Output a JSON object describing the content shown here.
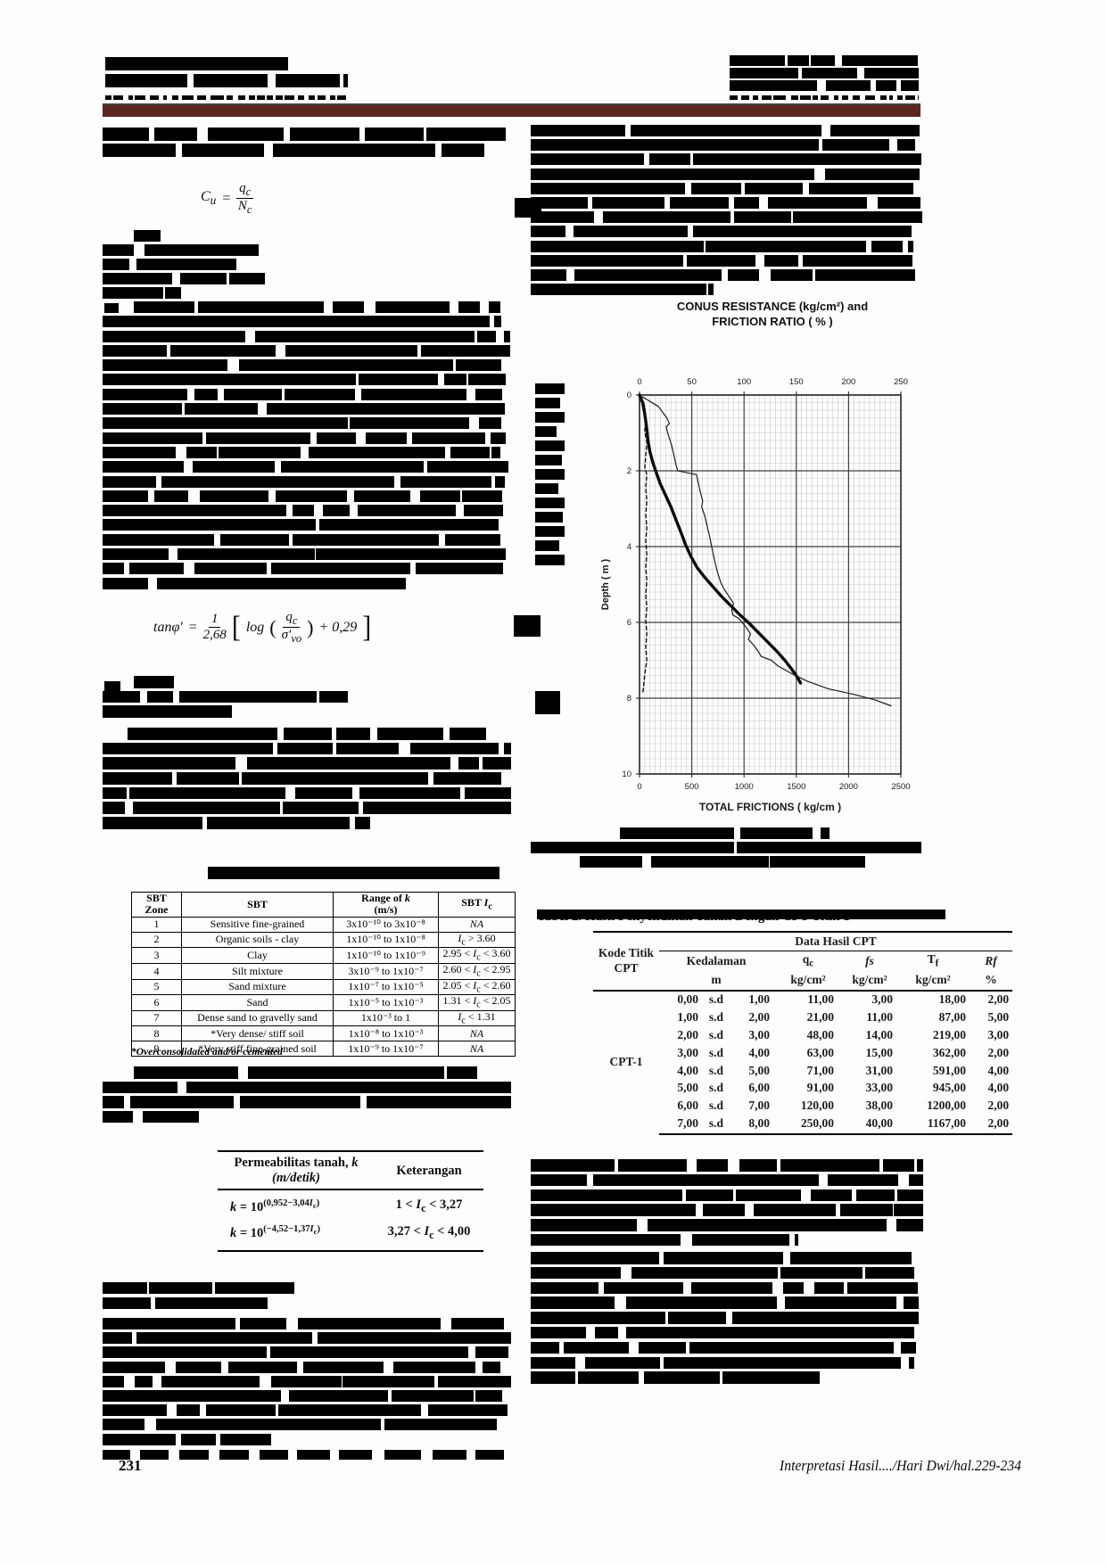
{
  "colors": {
    "header_bar": "#5a2620"
  },
  "page": {
    "number": "231",
    "footer_citation": "Interpretasi Hasil..../Hari Dwi/hal.229-234"
  },
  "formulas": {
    "eq1": {
      "lhs": "C",
      "lhs_sub": "u",
      "eq": "=",
      "num": "q",
      "num_sub": "c",
      "den": "N",
      "den_sub": "c"
    },
    "eq2": {
      "lhs": "tanφ′",
      "eq": "=",
      "f1_num": "1",
      "f1_den": "2,68",
      "lbracket": "[",
      "log": "log",
      "lparen": "(",
      "f2_num": "q",
      "f2_num_sub": "c",
      "f2_den": "σ′",
      "f2_den_sub": "vo",
      "rparen": ")",
      "plus": "+ 0,29",
      "rbracket": "]"
    }
  },
  "sbt_table": {
    "headers": [
      "SBT\nZone",
      "SBT",
      "Range of k\n(m/s)",
      "SBT Ic"
    ],
    "rows": [
      [
        "1",
        "Sensitive fine-grained",
        "3x10⁻¹⁰ to 3x10⁻⁸",
        "NA"
      ],
      [
        "2",
        "Organic soils - clay",
        "1x10⁻¹⁰ to 1x10⁻⁸",
        "Ic > 3.60"
      ],
      [
        "3",
        "Clay",
        "1x10⁻¹⁰ to 1x10⁻⁹",
        "2.95 < Ic < 3.60"
      ],
      [
        "4",
        "Silt mixture",
        "3x10⁻⁹ to 1x10⁻⁷",
        "2.60 < Ic < 2.95"
      ],
      [
        "5",
        "Sand mixture",
        "1x10⁻⁷ to 1x10⁻⁵",
        "2.05 < Ic < 2.60"
      ],
      [
        "6",
        "Sand",
        "1x10⁻⁵ to 1x10⁻³",
        "1.31 < Ic < 2.05"
      ],
      [
        "7",
        "Dense sand to gravelly sand",
        "1x10⁻³ to 1",
        "Ic < 1.31"
      ],
      [
        "8",
        "*Very dense/ stiff soil",
        "1x10⁻⁸ to 1x10⁻³",
        "NA"
      ],
      [
        "9",
        "*Very stiff fine-grained soil",
        "1x10⁻⁹ to 1x10⁻⁷",
        "NA"
      ]
    ],
    "footnote": "*Overconsolidated and/or cemented"
  },
  "perm_table": {
    "header_col1_line1": "Permeabilitas tanah, k",
    "header_col1_line2": "(m/detik)",
    "header_col2": "Keterangan",
    "rows": [
      {
        "base": "k = 10",
        "exp": "(0,952−3,04Ic)",
        "note": "1 < Ic < 3,27"
      },
      {
        "base": "k = 10",
        "exp": "(−4,52−1,37Ic)",
        "note": "3,27 < Ic < 4,00"
      }
    ]
  },
  "cpt_table": {
    "caption": "Tabel 2. Hasil Penyelidikan Tanah Dengan CPT Titik 1",
    "col_kode": "Kode Titik CPT",
    "group_header": "Data Hasil CPT",
    "kedalaman_label": "Kedalaman",
    "kedalaman_unit": "m",
    "col_qc_main": "q",
    "col_qc_sub": "c",
    "col_fs": "fs",
    "col_tf_main": "T",
    "col_tf_sub": "f",
    "col_rf": "Rf",
    "unit_kg": "kg/cm²",
    "unit_pct": "%",
    "kode_value": "CPT-1",
    "rows": [
      [
        "0,00",
        "s.d",
        "1,00",
        "11,00",
        "3,00",
        "18,00",
        "2,00"
      ],
      [
        "1,00",
        "s.d",
        "2,00",
        "21,00",
        "11,00",
        "87,00",
        "5,00"
      ],
      [
        "2,00",
        "s.d",
        "3,00",
        "48,00",
        "14,00",
        "219,00",
        "3,00"
      ],
      [
        "3,00",
        "s.d",
        "4,00",
        "63,00",
        "15,00",
        "362,00",
        "2,00"
      ],
      [
        "4,00",
        "s.d",
        "5,00",
        "71,00",
        "31,00",
        "591,00",
        "4,00"
      ],
      [
        "5,00",
        "s.d",
        "6,00",
        "91,00",
        "33,00",
        "945,00",
        "4,00"
      ],
      [
        "6,00",
        "s.d",
        "7,00",
        "120,00",
        "38,00",
        "1200,00",
        "2,00"
      ],
      [
        "7,00",
        "s.d",
        "8,00",
        "250,00",
        "40,00",
        "1167,00",
        "2,00"
      ]
    ]
  },
  "chart_data": {
    "type": "line",
    "title_line1": "CONUS RESISTANCE (kg/cm²) and",
    "title_line2": "FRICTION RATIO ( % )",
    "ylabel": "Depth ( m )",
    "xlabel_bottom": "TOTAL FRICTIONS ( kg/cm )",
    "top_axis_ticks": [
      0,
      50,
      100,
      150,
      200,
      250
    ],
    "top_axis_range": [
      0,
      250
    ],
    "bottom_axis_ticks": [
      0,
      500,
      1000,
      1500,
      2000,
      2500
    ],
    "bottom_axis_range": [
      0,
      2500
    ],
    "depth_ticks": [
      0,
      2,
      4,
      6,
      8,
      10
    ],
    "depth_range": [
      0,
      10
    ],
    "legend_position": "none",
    "grid": "on",
    "series": [
      {
        "name": "conus-resistance-qc",
        "axis": "top",
        "style": "thick-solid",
        "points": [
          [
            0,
            0
          ],
          [
            3,
            0.2
          ],
          [
            5,
            0.5
          ],
          [
            7,
            0.9
          ],
          [
            8,
            1.2
          ],
          [
            10,
            1.5
          ],
          [
            13,
            1.8
          ],
          [
            16,
            2.05
          ],
          [
            20,
            2.35
          ],
          [
            25,
            2.65
          ],
          [
            30,
            2.95
          ],
          [
            35,
            3.3
          ],
          [
            40,
            3.65
          ],
          [
            44,
            3.95
          ],
          [
            49,
            4.25
          ],
          [
            55,
            4.55
          ],
          [
            62,
            4.8
          ],
          [
            70,
            5.05
          ],
          [
            78,
            5.3
          ],
          [
            87,
            5.55
          ],
          [
            96,
            5.8
          ],
          [
            104,
            6.0
          ],
          [
            113,
            6.25
          ],
          [
            122,
            6.5
          ],
          [
            131,
            6.75
          ],
          [
            139,
            7.0
          ],
          [
            146,
            7.25
          ],
          [
            151,
            7.45
          ],
          [
            154,
            7.6
          ]
        ]
      },
      {
        "name": "total-frictions",
        "axis": "bottom",
        "style": "thin-solid",
        "points": [
          [
            30,
            0.05
          ],
          [
            180,
            0.3
          ],
          [
            260,
            0.6
          ],
          [
            285,
            0.75
          ],
          [
            255,
            0.85
          ],
          [
            275,
            1.05
          ],
          [
            305,
            1.3
          ],
          [
            330,
            1.6
          ],
          [
            350,
            1.85
          ],
          [
            365,
            2.0
          ],
          [
            545,
            2.1
          ],
          [
            565,
            2.35
          ],
          [
            585,
            2.6
          ],
          [
            605,
            2.8
          ],
          [
            595,
            2.95
          ],
          [
            625,
            3.2
          ],
          [
            650,
            3.5
          ],
          [
            672,
            3.75
          ],
          [
            690,
            4.0
          ],
          [
            705,
            4.2
          ],
          [
            725,
            4.45
          ],
          [
            748,
            4.7
          ],
          [
            778,
            4.95
          ],
          [
            805,
            5.1
          ],
          [
            852,
            5.3
          ],
          [
            900,
            5.5
          ],
          [
            882,
            5.65
          ],
          [
            892,
            5.8
          ],
          [
            952,
            5.9
          ],
          [
            1012,
            6.1
          ],
          [
            1062,
            6.3
          ],
          [
            1042,
            6.45
          ],
          [
            1092,
            6.6
          ],
          [
            1132,
            6.75
          ],
          [
            1165,
            6.9
          ],
          [
            1262,
            7.0
          ],
          [
            1325,
            7.15
          ],
          [
            1455,
            7.35
          ],
          [
            1605,
            7.55
          ],
          [
            1805,
            7.75
          ],
          [
            2055,
            7.9
          ],
          [
            2255,
            8.05
          ],
          [
            2405,
            8.2
          ]
        ]
      },
      {
        "name": "friction-ratio",
        "axis": "top",
        "style": "dashed",
        "points": [
          [
            2,
            0.05
          ],
          [
            5,
            0.3
          ],
          [
            6,
            0.6
          ],
          [
            5,
            0.95
          ],
          [
            7,
            1.25
          ],
          [
            6,
            1.6
          ],
          [
            5,
            1.9
          ],
          [
            7,
            2.1
          ],
          [
            6,
            2.45
          ],
          [
            7,
            2.8
          ],
          [
            6,
            3.15
          ],
          [
            7,
            3.5
          ],
          [
            6,
            3.85
          ],
          [
            7,
            4.2
          ],
          [
            6,
            4.55
          ],
          [
            7,
            4.9
          ],
          [
            6,
            5.25
          ],
          [
            7,
            5.6
          ],
          [
            6,
            5.95
          ],
          [
            7,
            6.3
          ],
          [
            6,
            6.65
          ],
          [
            7,
            7.0
          ],
          [
            5,
            7.35
          ],
          [
            4,
            7.65
          ],
          [
            3,
            7.9
          ]
        ]
      }
    ]
  }
}
